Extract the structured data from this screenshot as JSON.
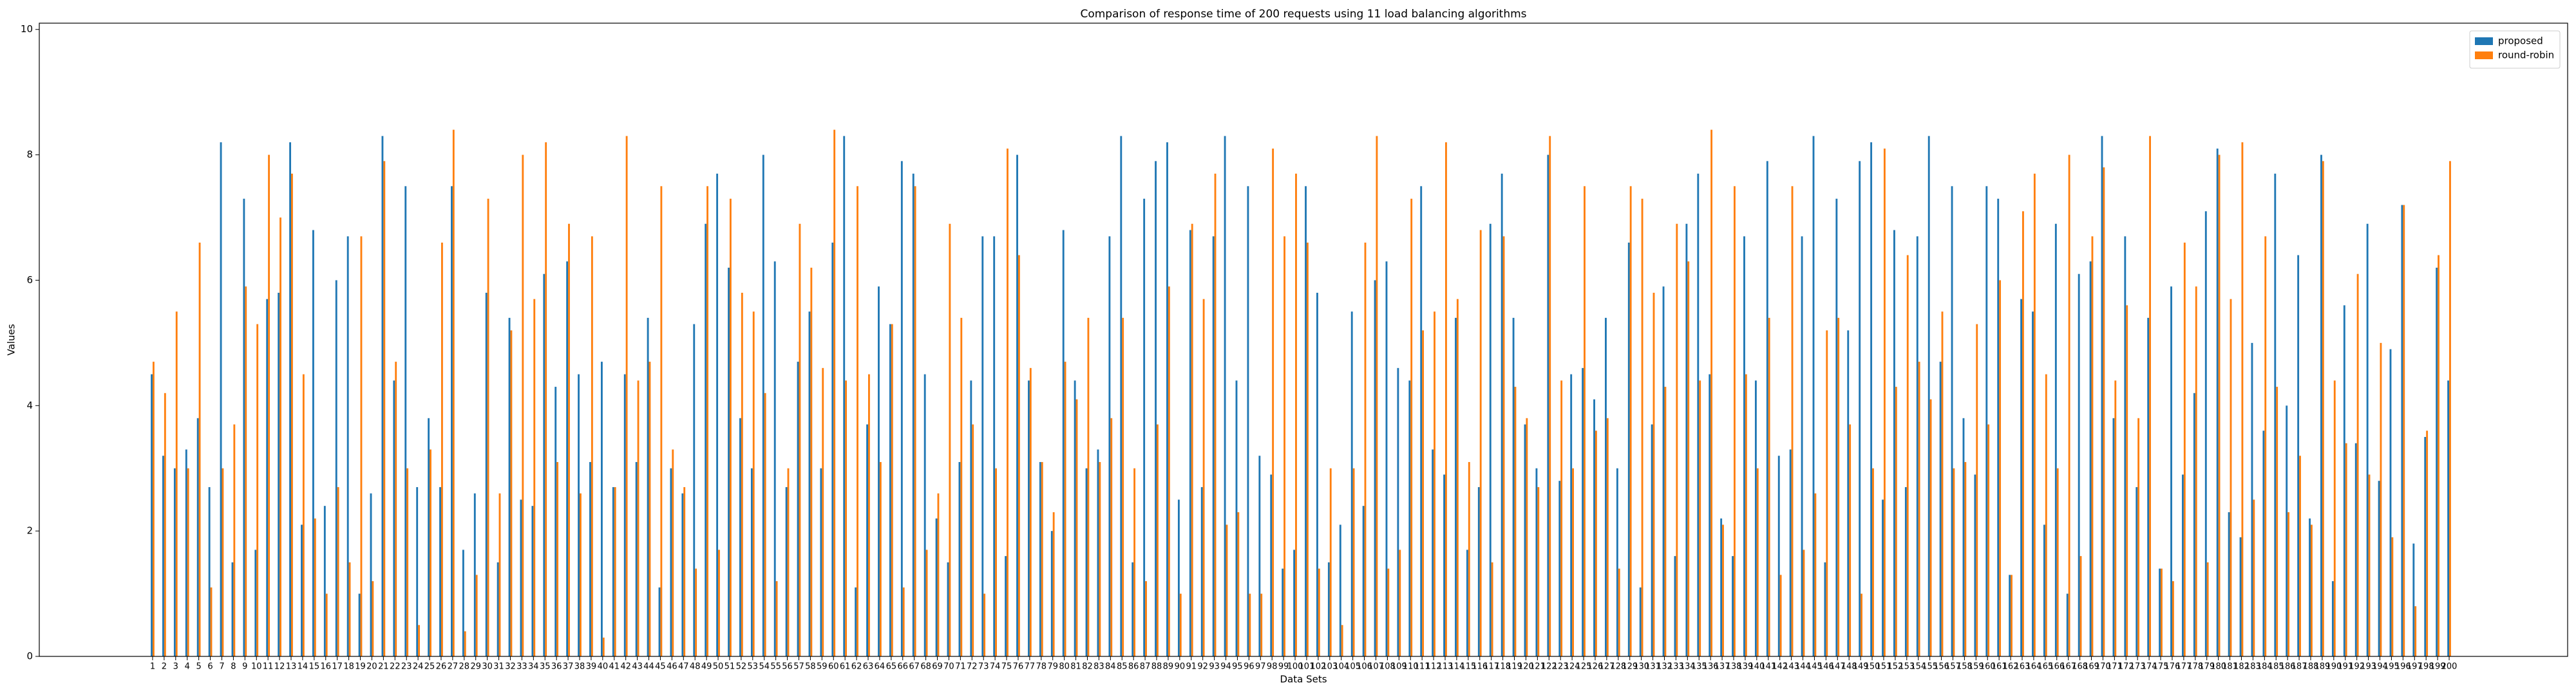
{
  "chart_data": {
    "type": "bar",
    "title": "Comparison of response time of 200 requests using 11 load balancing algorithms",
    "xlabel": "Data Sets",
    "ylabel": "Values",
    "categories": [
      "1",
      "2",
      "3",
      "4",
      "5",
      "6",
      "7",
      "8",
      "9",
      "10",
      "11",
      "12",
      "13",
      "14",
      "15",
      "16",
      "17",
      "18",
      "19",
      "20",
      "21",
      "22",
      "23",
      "24",
      "25",
      "26",
      "27",
      "28",
      "29",
      "30",
      "31",
      "32",
      "33",
      "34",
      "35",
      "36",
      "37",
      "38",
      "39",
      "40",
      "41",
      "42",
      "43",
      "44",
      "45",
      "46",
      "47",
      "48",
      "49",
      "50",
      "51",
      "52",
      "53",
      "54",
      "55",
      "56",
      "57",
      "58",
      "59",
      "60",
      "61",
      "62",
      "63",
      "64",
      "65",
      "66",
      "67",
      "68",
      "69",
      "70",
      "71",
      "72",
      "73",
      "74",
      "75",
      "76",
      "77",
      "78",
      "79",
      "80",
      "81",
      "82",
      "83",
      "84",
      "85",
      "86",
      "87",
      "88",
      "89",
      "90",
      "91",
      "92",
      "93",
      "94",
      "95",
      "96",
      "97",
      "98",
      "99",
      "100",
      "101",
      "102",
      "103",
      "104",
      "105",
      "106",
      "107",
      "108",
      "109",
      "110",
      "111",
      "112",
      "113",
      "114",
      "115",
      "116",
      "117",
      "118",
      "119",
      "120",
      "121",
      "122",
      "123",
      "124",
      "125",
      "126",
      "127",
      "128",
      "129",
      "130",
      "131",
      "132",
      "133",
      "134",
      "135",
      "136",
      "137",
      "138",
      "139",
      "140",
      "141",
      "142",
      "143",
      "144",
      "145",
      "146",
      "147",
      "148",
      "149",
      "150",
      "151",
      "152",
      "153",
      "154",
      "155",
      "156",
      "157",
      "158",
      "159",
      "160",
      "161",
      "162",
      "163",
      "164",
      "165",
      "166",
      "167",
      "168",
      "169",
      "170",
      "171",
      "172",
      "173",
      "174",
      "175",
      "176",
      "177",
      "178",
      "179",
      "180",
      "181",
      "182",
      "183",
      "184",
      "185",
      "186",
      "187",
      "188",
      "189",
      "190",
      "191",
      "192",
      "193",
      "194",
      "195",
      "196",
      "197",
      "198",
      "199",
      "200"
    ],
    "series": [
      {
        "name": "proposed",
        "color": "#1f77b4",
        "values": [
          4.5,
          3.2,
          3.0,
          3.3,
          3.8,
          2.7,
          8.2,
          1.5,
          7.3,
          1.7,
          5.7,
          5.8,
          8.2,
          2.1,
          6.8,
          2.4,
          6.0,
          6.7,
          1.0,
          2.6,
          8.3,
          4.4,
          7.5,
          2.7,
          3.8,
          2.7,
          7.5,
          1.7,
          2.6,
          5.8,
          1.5,
          5.4,
          2.5,
          2.4,
          6.1,
          4.3,
          6.3,
          4.5,
          3.1,
          4.7,
          2.7,
          4.5,
          3.1,
          5.4,
          1.1,
          3.0,
          2.6,
          5.3,
          6.9,
          7.7,
          6.2,
          3.8,
          3.0,
          8.0,
          6.3,
          2.7,
          4.7,
          5.5,
          3.0,
          6.6,
          8.3,
          1.1,
          3.7,
          5.9,
          5.3,
          7.9,
          7.7,
          4.5,
          2.2,
          1.5,
          3.1,
          4.4,
          6.7,
          6.7,
          1.6,
          8.0,
          4.4,
          3.1,
          2.0,
          6.8,
          4.4,
          3.0,
          3.3,
          6.7,
          8.3,
          1.5,
          7.3,
          7.9,
          8.2,
          2.5,
          6.8,
          2.7,
          6.7,
          8.3,
          4.4,
          7.5,
          3.2,
          2.9,
          1.4,
          1.7,
          7.5,
          5.8,
          1.5,
          2.1,
          5.5,
          2.4,
          6.0,
          6.3,
          4.6,
          4.4,
          7.5,
          3.3,
          2.9,
          5.4,
          1.7,
          2.7,
          6.9,
          7.7,
          5.4,
          3.7,
          3.0,
          8.0,
          2.8,
          4.5,
          4.6,
          4.1,
          5.4,
          3.0,
          6.6,
          1.1,
          3.7,
          5.9,
          1.6,
          6.9,
          7.7,
          4.5,
          2.2,
          1.6,
          6.7,
          4.4,
          7.9,
          3.2,
          3.3,
          6.7,
          8.3,
          1.5,
          7.3,
          5.2,
          7.9,
          8.2,
          2.5,
          6.8,
          2.7,
          6.7,
          8.3,
          4.7,
          7.5,
          3.8,
          2.9,
          7.5,
          7.3,
          1.3,
          5.7,
          5.5,
          2.1,
          6.9,
          1.0,
          6.1,
          6.3,
          8.3,
          3.8,
          6.7,
          2.7,
          5.4,
          1.4,
          5.9,
          2.9,
          4.2,
          7.1,
          8.1,
          2.3,
          1.9,
          5.0,
          3.6,
          7.7,
          4.0,
          6.4,
          2.2,
          8.0,
          1.2,
          5.6,
          3.4,
          6.9,
          2.8,
          4.9,
          7.2,
          1.8,
          3.5,
          6.2,
          4.4
        ]
      },
      {
        "name": "round-robin",
        "color": "#ff7f0e",
        "values": [
          4.7,
          4.2,
          5.5,
          3.0,
          6.6,
          1.1,
          3.0,
          3.7,
          5.9,
          5.3,
          8.0,
          7.0,
          7.7,
          4.5,
          2.2,
          1.0,
          2.7,
          1.5,
          6.7,
          1.2,
          7.9,
          4.7,
          3.0,
          0.5,
          3.3,
          6.6,
          8.4,
          0.4,
          1.3,
          7.3,
          2.6,
          5.2,
          8.0,
          5.7,
          8.2,
          3.1,
          6.9,
          2.6,
          6.7,
          0.3,
          2.7,
          8.3,
          4.4,
          4.7,
          7.5,
          3.3,
          2.7,
          1.4,
          7.5,
          1.7,
          7.3,
          5.8,
          5.5,
          4.2,
          1.2,
          3.0,
          6.9,
          6.2,
          4.6,
          8.4,
          4.4,
          7.5,
          4.5,
          3.1,
          5.3,
          1.1,
          7.5,
          1.7,
          2.6,
          6.9,
          5.4,
          3.7,
          1.0,
          3.0,
          8.1,
          6.4,
          4.6,
          3.1,
          2.3,
          4.7,
          4.1,
          5.4,
          3.1,
          3.8,
          5.4,
          3.0,
          1.2,
          3.7,
          5.9,
          1.0,
          6.9,
          5.7,
          7.7,
          2.1,
          2.3,
          1.0,
          1.0,
          8.1,
          6.7,
          7.7,
          6.6,
          1.4,
          3.0,
          0.5,
          3.0,
          6.6,
          8.3,
          1.4,
          1.7,
          7.3,
          5.2,
          5.5,
          8.2,
          5.7,
          3.1,
          6.8,
          1.5,
          6.7,
          4.3,
          3.8,
          2.7,
          8.3,
          4.4,
          3.0,
          7.5,
          3.6,
          3.8,
          1.4,
          7.5,
          7.3,
          5.8,
          4.3,
          6.9,
          6.3,
          4.4,
          8.4,
          2.1,
          7.5,
          4.5,
          3.0,
          5.4,
          1.3,
          7.5,
          1.7,
          2.6,
          5.2,
          5.4,
          3.7,
          1.0,
          3.0,
          8.1,
          4.3,
          6.4,
          4.7,
          4.1,
          5.5,
          3.0,
          3.1,
          5.3,
          3.7,
          6.0,
          1.3,
          7.1,
          7.7,
          4.5,
          3.0,
          8.0,
          1.6,
          6.7,
          7.8,
          4.4,
          5.6,
          3.8,
          8.3,
          1.4,
          1.2,
          6.6,
          5.9,
          1.5,
          8.0,
          5.7,
          8.2,
          2.5,
          6.7,
          4.3,
          2.3,
          3.2,
          2.1,
          7.9,
          4.4,
          3.4,
          6.1,
          2.9,
          5.0,
          1.9,
          7.2,
          0.8,
          3.6,
          6.4,
          7.9
        ]
      }
    ],
    "ylim": [
      0,
      10.1
    ],
    "yticks": [
      0,
      2,
      4,
      6,
      8,
      10
    ],
    "legend": "upper right"
  }
}
